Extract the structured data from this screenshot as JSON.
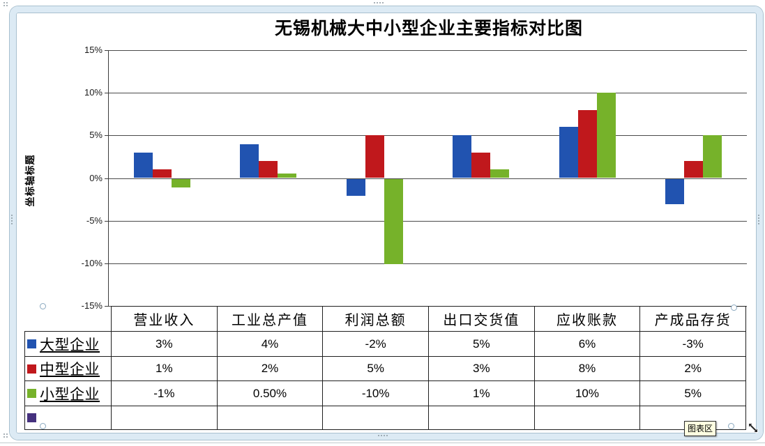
{
  "title": "无锡机械大中小型企业主要指标对比图",
  "axis_title": "坐标轴标题",
  "tooltip_label": "图表区",
  "colors": {
    "series_blue": "#2153b0",
    "series_red": "#c0181c",
    "series_green": "#76b22a",
    "series_purple": "#45317e",
    "gridline": "#4a4a4a",
    "frame": "#dceaf4",
    "tooltip_bg": "#ffffe1"
  },
  "chart_data": {
    "type": "bar",
    "title": "无锡机械大中小型企业主要指标对比图",
    "ylabel": "坐标轴标题",
    "xlabel": "",
    "ylim": [
      -15,
      15
    ],
    "grid": true,
    "legend_position": "table-left",
    "y_ticks": [
      "15%",
      "10%",
      "5%",
      "0%",
      "-5%",
      "-10%",
      "-15%"
    ],
    "categories": [
      "营业收入",
      "工业总产值",
      "利润总额",
      "出口交货值",
      "应收账款",
      "产成品存货"
    ],
    "series": [
      {
        "name": "大型企业",
        "color": "#2153b0",
        "values": [
          3,
          4,
          -2,
          5,
          6,
          -3
        ],
        "labels": [
          "3%",
          "4%",
          "-2%",
          "5%",
          "6%",
          "-3%"
        ]
      },
      {
        "name": "中型企业",
        "color": "#c0181c",
        "values": [
          1,
          2,
          5,
          3,
          8,
          2
        ],
        "labels": [
          "1%",
          "2%",
          "5%",
          "3%",
          "8%",
          "2%"
        ]
      },
      {
        "name": "小型企业",
        "color": "#76b22a",
        "values": [
          -1,
          0.5,
          -10,
          1,
          10,
          5
        ],
        "labels": [
          "-1%",
          "0.50%",
          "-10%",
          "1%",
          "10%",
          "5%"
        ]
      },
      {
        "name": "",
        "color": "#45317e",
        "values": [],
        "labels": [
          "",
          "",
          "",
          "",
          "",
          ""
        ]
      }
    ]
  }
}
